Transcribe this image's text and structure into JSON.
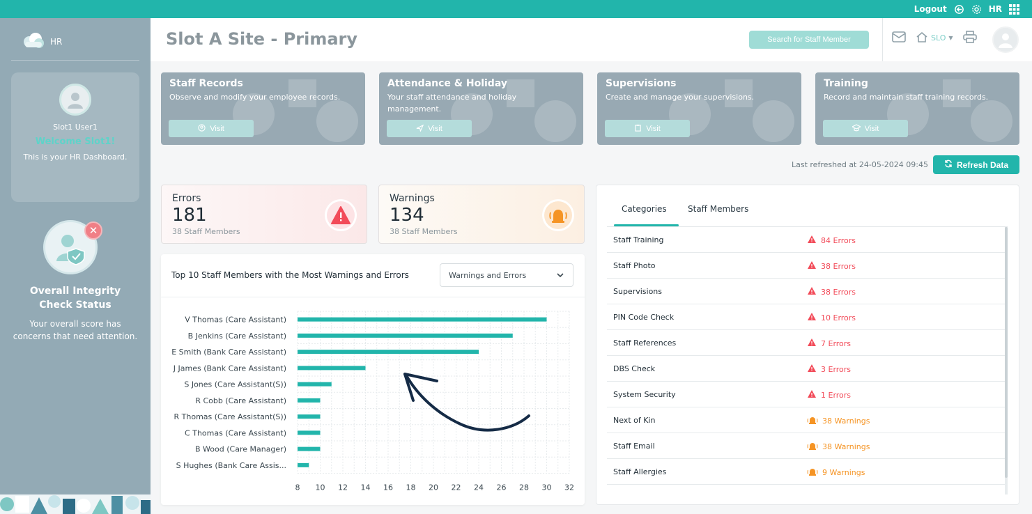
{
  "topbar": {
    "logout_label": "Logout",
    "user_code": "HR",
    "icons": [
      "logout-icon",
      "gear-icon",
      "apps-grid-icon"
    ]
  },
  "sidebar": {
    "brand": "HR",
    "user_name": "Slot1 User1",
    "welcome": "Welcome Slot1!",
    "dashboard_text": "This is your HR Dashboard.",
    "integrity_title_line1": "Overall Integrity",
    "integrity_title_line2": "Check Status",
    "integrity_text_line1": "Your overall score has",
    "integrity_text_line2": "concerns that need attention."
  },
  "header": {
    "title": "Slot A Site - Primary",
    "search_label": "Search for Staff Member",
    "site_code": "SLO",
    "icons": [
      "mail-icon",
      "home-icon",
      "printer-icon",
      "avatar"
    ]
  },
  "cards": [
    {
      "title": "Staff Records",
      "desc": "Observe and modify your employee records.",
      "visit": "Visit",
      "icon": "user-icon"
    },
    {
      "title": "Attendance & Holiday",
      "desc": "Your staff attendance and holiday management.",
      "visit": "Visit",
      "icon": "plane-icon"
    },
    {
      "title": "Supervisions",
      "desc": "Create and manage your supervisions.",
      "visit": "Visit",
      "icon": "clipboard-icon"
    },
    {
      "title": "Training",
      "desc": "Record and maintain staff training records.",
      "visit": "Visit",
      "icon": "graduation-cap-icon"
    }
  ],
  "refresh": {
    "last_refreshed": "Last refreshed at 24-05-2024 09:45",
    "button": "Refresh Data"
  },
  "stats": {
    "errors": {
      "label": "Errors",
      "value": "181",
      "sub": "38 Staff Members",
      "color": "#f24b59"
    },
    "warnings": {
      "label": "Warnings",
      "value": "134",
      "sub": "38 Staff Members",
      "color": "#f59424"
    }
  },
  "chart_panel": {
    "title": "Top 10 Staff Members with the Most Warnings and Errors",
    "select_value": "Warnings and Errors"
  },
  "chart_data": {
    "type": "bar",
    "orientation": "horizontal",
    "categories": [
      "V Thomas (Care Assistant)",
      "B Jenkins (Care Assistant)",
      "E Smith (Bank Care Assistant)",
      "J James (Bank Care Assistant)",
      "S Jones (Care Assistant(S))",
      "R Cobb (Care Assistant)",
      "R Thomas (Care Assistant(S))",
      "C Thomas (Care Assistant)",
      "B Wood (Care Manager)",
      "S Hughes (Bank Care Assis..."
    ],
    "values": [
      30,
      27,
      24,
      14,
      11,
      10,
      10,
      10,
      10,
      9
    ],
    "xlim": [
      8,
      32
    ],
    "xticks": [
      "8",
      "10",
      "12",
      "14",
      "16",
      "18",
      "20",
      "22",
      "24",
      "26",
      "28",
      "30",
      "32"
    ],
    "grid": true,
    "bar_color": "#22b5ab",
    "annotation": "arrow"
  },
  "tabs": {
    "items": [
      "Categories",
      "Staff Members"
    ],
    "active": "Categories"
  },
  "categories": [
    {
      "name": "Staff Training",
      "value": "84 Errors",
      "kind": "err"
    },
    {
      "name": "Staff Photo",
      "value": "38 Errors",
      "kind": "err"
    },
    {
      "name": "Supervisions",
      "value": "38 Errors",
      "kind": "err"
    },
    {
      "name": "PIN Code Check",
      "value": "10 Errors",
      "kind": "err"
    },
    {
      "name": "Staff References",
      "value": "7 Errors",
      "kind": "err"
    },
    {
      "name": "DBS Check",
      "value": "3 Errors",
      "kind": "err"
    },
    {
      "name": "System Security",
      "value": "1 Errors",
      "kind": "err"
    },
    {
      "name": "Next of Kin",
      "value": "38 Warnings",
      "kind": "warn"
    },
    {
      "name": "Staff Email",
      "value": "38 Warnings",
      "kind": "warn"
    },
    {
      "name": "Staff Allergies",
      "value": "9 Warnings",
      "kind": "warn"
    }
  ]
}
